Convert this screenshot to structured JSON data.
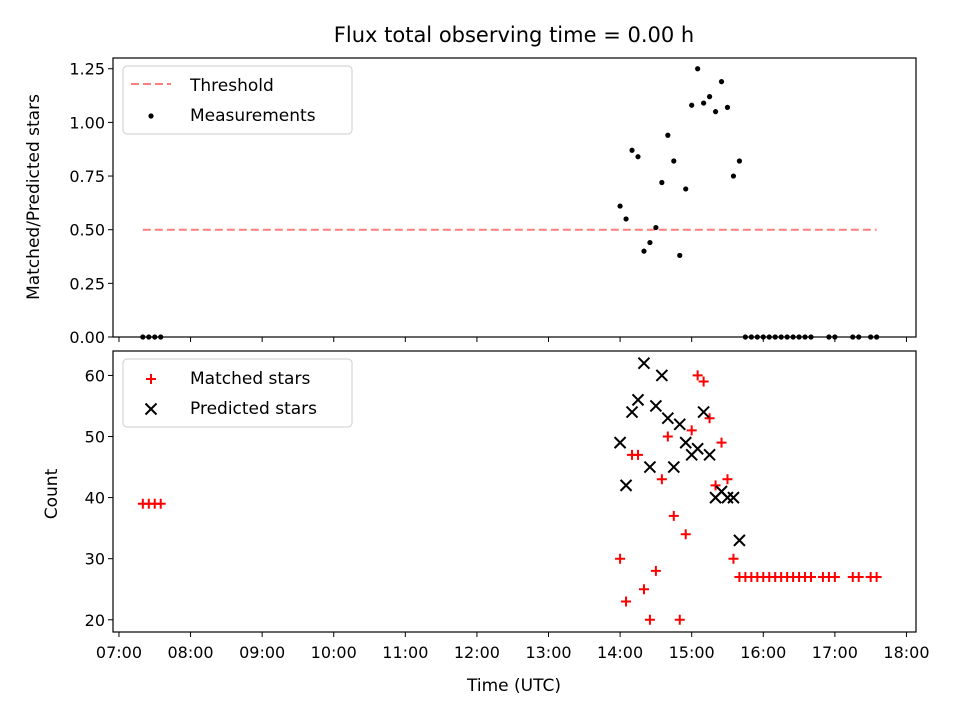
{
  "figure": {
    "title": "Flux total observing time = 0.00 h"
  },
  "chart_data": [
    {
      "type": "scatter",
      "panel": "top",
      "xlabel": "",
      "ylabel": "Matched/Predicted stars",
      "ylim": [
        0.0,
        1.3
      ],
      "yticks": [
        0.0,
        0.25,
        0.5,
        0.75,
        1.0,
        1.25
      ],
      "ytick_labels": [
        "0.00",
        "0.25",
        "0.50",
        "0.75",
        "1.00",
        "1.25"
      ],
      "legend": {
        "position": "upper-left",
        "entries": [
          "Threshold",
          "Measurements"
        ]
      },
      "series": [
        {
          "name": "Threshold",
          "kind": "dashed-line",
          "color": "#ff7f7f",
          "points": [
            [
              "07:20",
              0.5
            ],
            [
              "17:35",
              0.5
            ]
          ]
        },
        {
          "name": "Measurements",
          "kind": "dot",
          "color": "#000000",
          "points": [
            [
              "07:20",
              0.0
            ],
            [
              "07:25",
              0.0
            ],
            [
              "07:30",
              0.0
            ],
            [
              "07:35",
              0.0
            ],
            [
              "14:00",
              0.61
            ],
            [
              "14:05",
              0.55
            ],
            [
              "14:10",
              0.87
            ],
            [
              "14:15",
              0.84
            ],
            [
              "14:20",
              0.4
            ],
            [
              "14:25",
              0.44
            ],
            [
              "14:30",
              0.51
            ],
            [
              "14:35",
              0.72
            ],
            [
              "14:40",
              0.94
            ],
            [
              "14:45",
              0.82
            ],
            [
              "14:50",
              0.38
            ],
            [
              "14:55",
              0.69
            ],
            [
              "15:00",
              1.08
            ],
            [
              "15:05",
              1.25
            ],
            [
              "15:10",
              1.09
            ],
            [
              "15:15",
              1.12
            ],
            [
              "15:20",
              1.05
            ],
            [
              "15:25",
              1.19
            ],
            [
              "15:30",
              1.07
            ],
            [
              "15:35",
              0.75
            ],
            [
              "15:40",
              0.82
            ],
            [
              "15:45",
              0.0
            ],
            [
              "15:50",
              0.0
            ],
            [
              "15:55",
              0.0
            ],
            [
              "16:00",
              0.0
            ],
            [
              "16:05",
              0.0
            ],
            [
              "16:10",
              0.0
            ],
            [
              "16:15",
              0.0
            ],
            [
              "16:20",
              0.0
            ],
            [
              "16:25",
              0.0
            ],
            [
              "16:30",
              0.0
            ],
            [
              "16:35",
              0.0
            ],
            [
              "16:40",
              0.0
            ],
            [
              "16:55",
              0.0
            ],
            [
              "17:00",
              0.0
            ],
            [
              "17:15",
              0.0
            ],
            [
              "17:20",
              0.0
            ],
            [
              "17:30",
              0.0
            ],
            [
              "17:35",
              0.0
            ]
          ]
        }
      ]
    },
    {
      "type": "scatter",
      "panel": "bottom",
      "xlabel": "Time (UTC)",
      "ylabel": "Count",
      "ylim": [
        18,
        64
      ],
      "yticks": [
        20,
        30,
        40,
        50,
        60
      ],
      "ytick_labels": [
        "20",
        "30",
        "40",
        "50",
        "60"
      ],
      "xlim": [
        "06:55",
        "18:08"
      ],
      "xticks": [
        "07:00",
        "08:00",
        "09:00",
        "10:00",
        "11:00",
        "12:00",
        "13:00",
        "14:00",
        "15:00",
        "16:00",
        "17:00",
        "18:00"
      ],
      "legend": {
        "position": "upper-left",
        "entries": [
          "Matched stars",
          "Predicted stars"
        ]
      },
      "series": [
        {
          "name": "Matched stars",
          "kind": "plus",
          "color": "#ff0000",
          "points": [
            [
              "07:20",
              39
            ],
            [
              "07:25",
              39
            ],
            [
              "07:30",
              39
            ],
            [
              "07:35",
              39
            ],
            [
              "14:00",
              30
            ],
            [
              "14:05",
              23
            ],
            [
              "14:10",
              47
            ],
            [
              "14:15",
              47
            ],
            [
              "14:20",
              25
            ],
            [
              "14:25",
              20
            ],
            [
              "14:30",
              28
            ],
            [
              "14:35",
              43
            ],
            [
              "14:40",
              50
            ],
            [
              "14:45",
              37
            ],
            [
              "14:50",
              20
            ],
            [
              "14:55",
              34
            ],
            [
              "15:00",
              51
            ],
            [
              "15:05",
              60
            ],
            [
              "15:10",
              59
            ],
            [
              "15:15",
              53
            ],
            [
              "15:20",
              42
            ],
            [
              "15:25",
              49
            ],
            [
              "15:30",
              43
            ],
            [
              "15:35",
              30
            ],
            [
              "15:40",
              27
            ],
            [
              "15:45",
              27
            ],
            [
              "15:50",
              27
            ],
            [
              "15:55",
              27
            ],
            [
              "16:00",
              27
            ],
            [
              "16:05",
              27
            ],
            [
              "16:10",
              27
            ],
            [
              "16:15",
              27
            ],
            [
              "16:20",
              27
            ],
            [
              "16:25",
              27
            ],
            [
              "16:30",
              27
            ],
            [
              "16:35",
              27
            ],
            [
              "16:40",
              27
            ],
            [
              "16:50",
              27
            ],
            [
              "16:55",
              27
            ],
            [
              "17:00",
              27
            ],
            [
              "17:15",
              27
            ],
            [
              "17:20",
              27
            ],
            [
              "17:30",
              27
            ],
            [
              "17:35",
              27
            ]
          ]
        },
        {
          "name": "Predicted stars",
          "kind": "cross",
          "color": "#000000",
          "points": [
            [
              "14:00",
              49
            ],
            [
              "14:05",
              42
            ],
            [
              "14:10",
              54
            ],
            [
              "14:15",
              56
            ],
            [
              "14:20",
              62
            ],
            [
              "14:25",
              45
            ],
            [
              "14:30",
              55
            ],
            [
              "14:35",
              60
            ],
            [
              "14:40",
              53
            ],
            [
              "14:45",
              45
            ],
            [
              "14:50",
              52
            ],
            [
              "14:55",
              49
            ],
            [
              "15:00",
              47
            ],
            [
              "15:05",
              48
            ],
            [
              "15:10",
              54
            ],
            [
              "15:15",
              47
            ],
            [
              "15:20",
              40
            ],
            [
              "15:25",
              41
            ],
            [
              "15:30",
              40
            ],
            [
              "15:35",
              40
            ],
            [
              "15:40",
              33
            ]
          ]
        }
      ]
    }
  ]
}
